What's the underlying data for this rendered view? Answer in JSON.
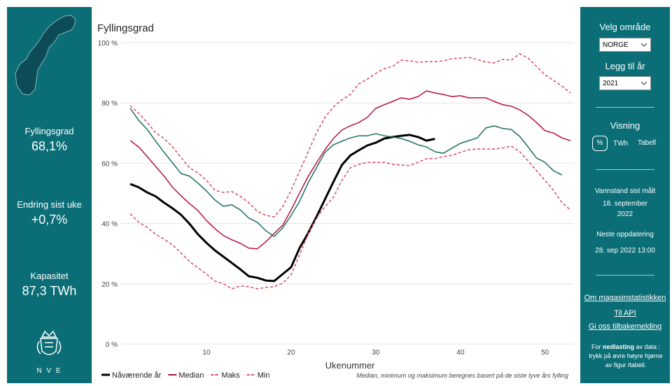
{
  "left_panel": {
    "stats": [
      {
        "label": "Fyllingsgrad",
        "value": "68,1%"
      },
      {
        "label": "Endring sist uke",
        "value": "+0,7%"
      },
      {
        "label": "Kapasitet",
        "value": "87,3 TWh"
      }
    ],
    "logo_text": "N V E"
  },
  "right_panel": {
    "area_label": "Velg område",
    "area_value": "NORGE",
    "year_label": "Legg til år",
    "year_value": "2021",
    "view_label": "Visning",
    "view_options": [
      "%",
      "TWh",
      "Tabell"
    ],
    "measured_label": "Vannstand sist målt",
    "measured_value": "18. september 2022",
    "next_label": "Neste oppdatering",
    "next_value": "28. sep 2022 13:00",
    "links": [
      "Om magasinstatistikken",
      "Til API",
      "Gi oss tilbakemelding"
    ],
    "note": {
      "before": "For ",
      "bold": "nedlasting",
      "after": " av data : trykk på øvre høyre hjørne av figur /tabell."
    }
  },
  "chart_data": {
    "type": "line",
    "title": "Fyllingsgrad",
    "x_label": "Ukenummer",
    "footnote": "Median, minimum og maksimum beregnes basert på de siste tyve års fylling",
    "x": [
      1,
      2,
      3,
      4,
      5,
      6,
      7,
      8,
      9,
      10,
      11,
      12,
      13,
      14,
      15,
      16,
      17,
      18,
      19,
      20,
      21,
      22,
      23,
      24,
      25,
      26,
      27,
      28,
      29,
      30,
      31,
      32,
      33,
      34,
      35,
      36,
      37,
      38,
      39,
      40,
      41,
      42,
      43,
      44,
      45,
      46,
      47,
      48,
      49,
      50,
      51,
      52,
      53
    ],
    "xlim": [
      0,
      54
    ],
    "xticks": [
      10,
      20,
      30,
      40,
      50
    ],
    "ylim": [
      0,
      100
    ],
    "yticks": [
      {
        "value": 0,
        "label": "0 %"
      },
      {
        "value": 20,
        "label": "20 %"
      },
      {
        "value": 40,
        "label": "40 %"
      },
      {
        "value": 60,
        "label": "60 %"
      },
      {
        "value": 80,
        "label": "80 %"
      },
      {
        "value": 100,
        "label": "100 %"
      }
    ],
    "grid": true,
    "series": [
      {
        "name": "Nåværende år",
        "color": "#000000",
        "style": "solid",
        "values": [
          53.1,
          52,
          50.3,
          49,
          46.9,
          45,
          42.9,
          39.9,
          36.4,
          33.6,
          31.1,
          29,
          26.9,
          24.8,
          22.5,
          22,
          21.1,
          20.9,
          23.2,
          25.5,
          31.8,
          36.7,
          42.2,
          48,
          53.8,
          59.4,
          62.6,
          64.3,
          65.9,
          66.8,
          68.2,
          68.7,
          69.1,
          69.4,
          68.7,
          67.5,
          68.1,
          null,
          null,
          null,
          null,
          null,
          null,
          null,
          null,
          null,
          null,
          null,
          null,
          null,
          null,
          null,
          null
        ]
      },
      {
        "name": "Median",
        "color": "#b5123a",
        "style": "solid",
        "values": [
          67.5,
          65.4,
          62.2,
          58.9,
          55.7,
          52,
          49.2,
          46.6,
          44.3,
          41,
          38.3,
          36,
          34.6,
          33.4,
          31.8,
          31.6,
          33.9,
          36.7,
          39.4,
          44.5,
          50.1,
          55.5,
          60.1,
          64.5,
          68.2,
          71,
          72.4,
          73.5,
          75.2,
          78.2,
          79.4,
          80.5,
          81.7,
          81.2,
          82.1,
          84,
          83.3,
          82.8,
          82.1,
          82.4,
          81.7,
          81.7,
          81.7,
          80.5,
          79.4,
          78.9,
          77.7,
          75.9,
          73.5,
          70.8,
          70,
          68.4,
          67.5
        ]
      },
      {
        "name": "Maks",
        "color": "#d9475f",
        "style": "dashed",
        "values": [
          79.1,
          76.6,
          73.5,
          70.1,
          68.2,
          65.4,
          61.9,
          58.5,
          56.8,
          54.3,
          51,
          50.3,
          50.6,
          49,
          46.9,
          44.1,
          42.7,
          42.2,
          45.5,
          51,
          57.3,
          63.6,
          70.1,
          75.2,
          78.7,
          81,
          82.8,
          86.3,
          87.9,
          89.8,
          91.4,
          92.1,
          94.2,
          94,
          93.5,
          93.7,
          93.7,
          94,
          94.7,
          94.9,
          95.1,
          94.4,
          93.5,
          93.3,
          94.4,
          94.2,
          96.3,
          94.9,
          92.1,
          89.3,
          87.5,
          85.6,
          83.3
        ]
      },
      {
        "name": "Min",
        "color": "#d9475f",
        "style": "dashed",
        "values": [
          43.2,
          40.4,
          38.7,
          36.4,
          34.8,
          32.9,
          30.2,
          27.4,
          25.3,
          23.2,
          20.9,
          20,
          18.3,
          19.3,
          19,
          18.3,
          18.8,
          19,
          20.2,
          23,
          29.5,
          36.4,
          41.8,
          45.5,
          48.7,
          54.3,
          58.5,
          59.6,
          60.3,
          60.3,
          60.3,
          59.6,
          59.4,
          59.2,
          60.3,
          61.5,
          61.5,
          62.2,
          62.6,
          63.6,
          64.5,
          64.7,
          64.7,
          64.7,
          65,
          65.7,
          63.8,
          60.8,
          57.5,
          54.3,
          51,
          46.9,
          44.5
        ]
      },
      {
        "color": "#1b6e62",
        "style": "solid",
        "values": [
          78.2,
          74.2,
          71.2,
          67.3,
          63.6,
          60.1,
          56.6,
          55.7,
          53.4,
          50.8,
          47.8,
          45.7,
          46.2,
          44.5,
          41.8,
          40.4,
          37.6,
          35.7,
          38.5,
          42.7,
          47.3,
          53.4,
          58.5,
          63.6,
          66.1,
          67.3,
          68.4,
          69.1,
          69.1,
          69.8,
          69.1,
          68.7,
          68.2,
          67.3,
          66.1,
          65.4,
          63.8,
          63.3,
          65,
          66.6,
          67.5,
          68.4,
          71.7,
          72.4,
          71.5,
          71.2,
          68.9,
          65.4,
          61.7,
          60.3,
          57.5,
          56.1,
          null
        ]
      }
    ]
  }
}
